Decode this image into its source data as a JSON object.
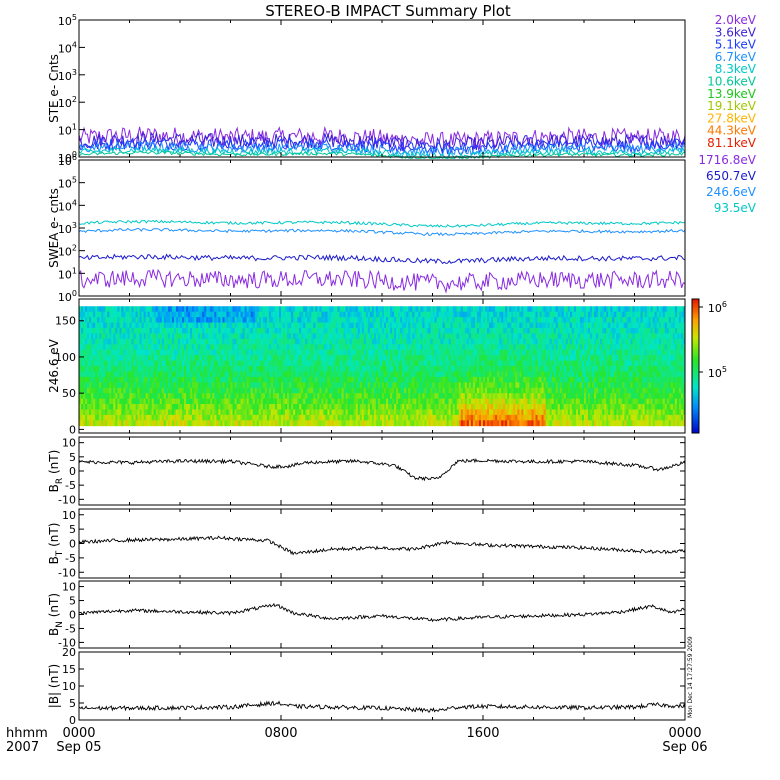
{
  "title": "STEREO-B IMPACT Summary Plot",
  "time_axis": {
    "row1_left": "hhmm",
    "row2_left": "2007",
    "ticks": [
      {
        "hour": 0,
        "hhmm": "0000",
        "date": "Sep 05"
      },
      {
        "hour": 8,
        "hhmm": "0800",
        "date": ""
      },
      {
        "hour": 16,
        "hhmm": "1600",
        "date": ""
      },
      {
        "hour": 24,
        "hhmm": "0000",
        "date": "Sep 06"
      }
    ],
    "range_hours": [
      0,
      24
    ]
  },
  "timestamp": "Mon Dec 14 17:27:59 2009",
  "ste_legend": [
    {
      "label": "2.0keV",
      "color": "#8a2be2"
    },
    {
      "label": "3.6keV",
      "color": "#3a1fd6"
    },
    {
      "label": "5.1keV",
      "color": "#1b3bff"
    },
    {
      "label": "6.7keV",
      "color": "#1e90ff"
    },
    {
      "label": "8.3keV",
      "color": "#00c8c8"
    },
    {
      "label": "10.6keV",
      "color": "#00c896"
    },
    {
      "label": "13.9keV",
      "color": "#19c819"
    },
    {
      "label": "19.1keV",
      "color": "#a0c800"
    },
    {
      "label": "27.8keV",
      "color": "#ffb400"
    },
    {
      "label": "44.3keV",
      "color": "#ff7800"
    },
    {
      "label": "81.1keV",
      "color": "#e61e00"
    }
  ],
  "swea_legend": [
    {
      "label": "1716.8eV",
      "color": "#8a2be2"
    },
    {
      "label": "650.7eV",
      "color": "#1b1bcc"
    },
    {
      "label": "246.6eV",
      "color": "#1e90ff"
    },
    {
      "label": "93.5eV",
      "color": "#00c8c8"
    }
  ],
  "chart_data": [
    {
      "type": "line",
      "panel": "ste",
      "ylabel": "STE e- Cnts",
      "yscale": "log",
      "ylim": [
        1,
        100000
      ],
      "yticks": [
        {
          "base": "10",
          "exp": "0"
        },
        {
          "base": "10",
          "exp": "1"
        },
        {
          "base": "10",
          "exp": "2"
        },
        {
          "base": "10",
          "exp": "3"
        },
        {
          "base": "10",
          "exp": "4"
        },
        {
          "base": "10",
          "exp": "5"
        }
      ],
      "series": [
        {
          "name": "2.0keV",
          "level": 5,
          "spread": 2.2
        },
        {
          "name": "3.6keV",
          "level": 3.6,
          "spread": 1.9
        },
        {
          "name": "5.1keV",
          "level": 2.6,
          "spread": 1.7
        },
        {
          "name": "6.7keV",
          "level": 2.0,
          "spread": 1.5
        },
        {
          "name": "8.3keV",
          "level": 1.5,
          "spread": 1.3
        },
        {
          "name": "10.6keV",
          "level": 1.2,
          "spread": 1.15
        }
      ]
    },
    {
      "type": "line",
      "panel": "swea",
      "ylabel": "SWEA e- cnts",
      "yscale": "log",
      "ylim": [
        1,
        1000000
      ],
      "yticks": [
        {
          "base": "10",
          "exp": "0"
        },
        {
          "base": "10",
          "exp": "1"
        },
        {
          "base": "10",
          "exp": "2"
        },
        {
          "base": "10",
          "exp": "3"
        },
        {
          "base": "10",
          "exp": "4"
        },
        {
          "base": "10",
          "exp": "5"
        },
        {
          "base": "10",
          "exp": "6"
        }
      ],
      "series": [
        {
          "name": "93.5eV",
          "level": 1600,
          "spread": 1.15
        },
        {
          "name": "246.6eV",
          "level": 700,
          "spread": 1.15
        },
        {
          "name": "650.7eV",
          "level": 45,
          "spread": 1.3
        },
        {
          "name": "1716.8eV",
          "level": 5,
          "spread": 2.5
        }
      ]
    },
    {
      "type": "heatmap",
      "panel": "pad",
      "ylabel": "246.6 eV",
      "ylim": [
        -5,
        180
      ],
      "yticks": [
        0,
        50,
        100,
        150
      ],
      "colorbar": {
        "scale": "log",
        "ticks": [
          {
            "base": "10",
            "exp": "5"
          },
          {
            "base": "10",
            "exp": "6"
          }
        ]
      }
    },
    {
      "type": "line",
      "panel": "br",
      "ylabel": "B",
      "ylabel_sub": "R",
      "ylabel_unit": "(nT)",
      "ylim": [
        -12,
        12
      ],
      "yticks": [
        -10,
        -5,
        0,
        5,
        10
      ],
      "x": [
        0,
        2,
        4,
        6,
        7.6,
        8.4,
        9,
        11,
        12.5,
        13.3,
        14.2,
        15,
        16,
        18,
        20,
        22,
        23,
        24
      ],
      "y": [
        3.2,
        3.0,
        3.5,
        3.4,
        1.5,
        1.8,
        3.0,
        3.5,
        2.0,
        -2.5,
        -2.8,
        3.5,
        3.7,
        3.3,
        3.4,
        2.0,
        0.5,
        3.0
      ]
    },
    {
      "type": "line",
      "panel": "bt",
      "ylabel": "B",
      "ylabel_sub": "T",
      "ylabel_unit": "(nT)",
      "ylim": [
        -12,
        12
      ],
      "yticks": [
        -10,
        -5,
        0,
        5,
        10
      ],
      "x": [
        0,
        2,
        4,
        5.5,
        7.5,
        8.5,
        10,
        12,
        13.3,
        14.5,
        16,
        18,
        20,
        22,
        23,
        24
      ],
      "y": [
        0.5,
        1.2,
        1.5,
        2.0,
        1.0,
        -3.5,
        -2.0,
        -1.5,
        -2.0,
        0.5,
        -0.5,
        -1.0,
        -1.5,
        -2.5,
        -3.0,
        -2.5
      ]
    },
    {
      "type": "line",
      "panel": "bn",
      "ylabel": "B",
      "ylabel_sub": "N",
      "ylabel_unit": "(nT)",
      "ylim": [
        -12,
        12
      ],
      "yticks": [
        -10,
        -5,
        0,
        5,
        10
      ],
      "x": [
        0,
        2,
        4,
        6,
        7.8,
        8.5,
        10,
        12,
        14,
        16,
        18,
        20,
        21.5,
        22.7,
        23.5,
        24
      ],
      "y": [
        0.5,
        1.5,
        1.0,
        0.5,
        3.5,
        0.5,
        -1.5,
        -0.5,
        -2.0,
        -1.0,
        -0.5,
        0.0,
        1.0,
        3.0,
        0.5,
        2.0
      ]
    },
    {
      "type": "line",
      "panel": "bmag",
      "ylabel": "|B|",
      "ylabel_unit": "(nT)",
      "ylim": [
        0,
        20
      ],
      "yticks": [
        0,
        5,
        10,
        15,
        20
      ],
      "x": [
        0,
        2,
        4,
        6,
        7.8,
        8.5,
        10,
        12,
        13.3,
        14.2,
        15,
        16,
        18,
        20,
        22,
        22.8,
        24
      ],
      "y": [
        3.5,
        3.5,
        3.6,
        3.8,
        5.0,
        4.0,
        3.8,
        3.5,
        3.0,
        2.8,
        3.8,
        4.0,
        3.8,
        3.6,
        3.8,
        4.5,
        4.0
      ]
    }
  ]
}
